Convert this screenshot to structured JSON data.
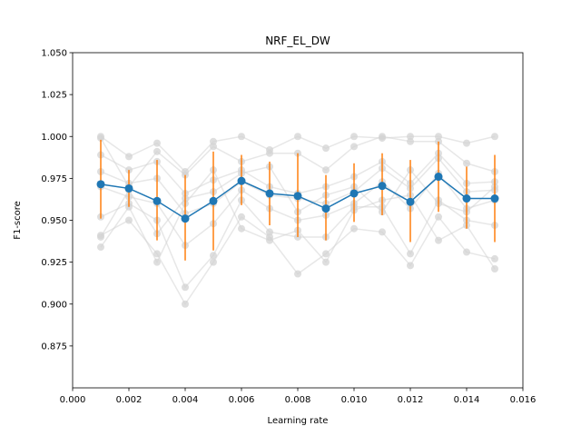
{
  "chart_data": {
    "type": "line",
    "title": "NRF_EL_DW",
    "xlabel": "Learning rate",
    "ylabel": "F1-score",
    "xlim": [
      0.0,
      0.016
    ],
    "ylim": [
      0.85,
      1.05
    ],
    "xticks": [
      0.0,
      0.002,
      0.004,
      0.006,
      0.008,
      0.01,
      0.012,
      0.014,
      0.016
    ],
    "xtick_labels": [
      "0.000",
      "0.002",
      "0.004",
      "0.006",
      "0.008",
      "0.010",
      "0.012",
      "0.014",
      "0.016"
    ],
    "yticks": [
      0.875,
      0.9,
      0.925,
      0.95,
      0.975,
      1.0,
      1.025,
      1.05
    ],
    "ytick_labels": [
      "0.875",
      "0.900",
      "0.925",
      "0.950",
      "0.975",
      "1.000",
      "1.025",
      "1.050"
    ],
    "grid": false,
    "x": [
      0.001,
      0.002,
      0.003,
      0.004,
      0.005,
      0.006,
      0.007,
      0.008,
      0.009,
      0.01,
      0.011,
      0.012,
      0.013,
      0.014,
      0.015
    ],
    "mean": {
      "values": [
        0.9715,
        0.969,
        0.9615,
        0.951,
        0.9615,
        0.9735,
        0.966,
        0.9645,
        0.957,
        0.966,
        0.9705,
        0.961,
        0.976,
        0.963,
        0.963
      ],
      "color": "#1f77b4"
    },
    "error_bars": {
      "color": "#ff7f0e",
      "low": [
        0.951,
        0.958,
        0.938,
        0.926,
        0.932,
        0.959,
        0.947,
        0.94,
        0.938,
        0.949,
        0.953,
        0.937,
        0.955,
        0.945,
        0.937
      ],
      "high": [
        0.998,
        0.98,
        0.986,
        0.977,
        0.991,
        0.989,
        0.985,
        0.99,
        0.977,
        0.984,
        0.99,
        0.986,
        0.997,
        0.982,
        0.989
      ]
    },
    "runs": {
      "color": "#d3d3d3",
      "series": [
        [
          1.0,
          0.988,
          0.996,
          0.979,
          0.997,
          1.0,
          0.992,
          1.0,
          0.993,
          1.0,
          0.999,
          1.0,
          1.0,
          0.996,
          1.0
        ],
        [
          0.999,
          0.97,
          0.991,
          0.977,
          0.994,
          0.985,
          0.99,
          0.99,
          0.98,
          0.994,
          1.0,
          0.997,
          0.997,
          0.984,
          0.979
        ],
        [
          0.989,
          0.98,
          0.985,
          0.966,
          0.974,
          0.98,
          0.97,
          0.966,
          0.97,
          0.976,
          0.985,
          0.972,
          0.99,
          0.972,
          0.973
        ],
        [
          0.979,
          0.972,
          0.975,
          0.954,
          0.96,
          0.973,
          0.965,
          0.963,
          0.96,
          0.967,
          0.981,
          0.969,
          0.987,
          0.967,
          0.968
        ],
        [
          0.97,
          0.964,
          0.96,
          0.935,
          0.948,
          0.968,
          0.957,
          0.95,
          0.953,
          0.96,
          0.973,
          0.957,
          0.978,
          0.957,
          0.962
        ],
        [
          0.952,
          0.96,
          0.95,
          0.91,
          0.929,
          0.962,
          0.943,
          0.94,
          0.94,
          0.958,
          0.958,
          0.93,
          0.962,
          0.95,
          0.947
        ],
        [
          0.941,
          0.95,
          0.93,
          0.9,
          0.925,
          0.952,
          0.94,
          0.918,
          0.93,
          0.945,
          0.943,
          0.923,
          0.952,
          0.931,
          0.927
        ],
        [
          0.934,
          0.958,
          0.925,
          0.96,
          0.98,
          0.945,
          0.938,
          0.944,
          0.925,
          0.956,
          0.962,
          0.965,
          0.938,
          0.947,
          0.921
        ],
        [
          0.94,
          0.968,
          0.942,
          0.963,
          0.967,
          0.978,
          0.982,
          0.955,
          0.965,
          0.97,
          0.955,
          0.98,
          0.96,
          0.955,
          0.97
        ]
      ]
    }
  }
}
